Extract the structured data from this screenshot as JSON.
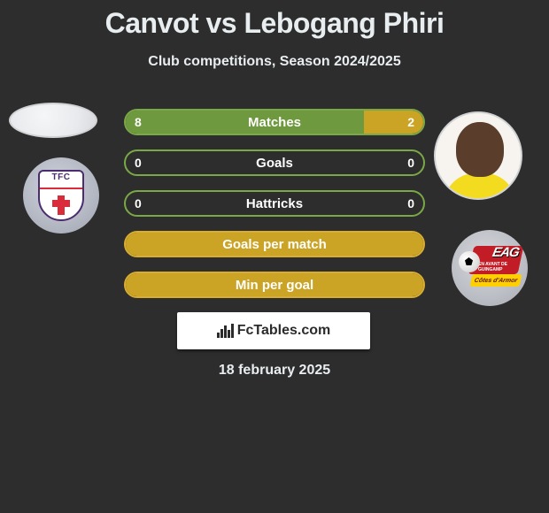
{
  "title": "Canvot vs Lebogang Phiri",
  "subtitle": "Club competitions, Season 2024/2025",
  "date": "18 february 2025",
  "left_color": "#6f993e",
  "right_color": "#cba325",
  "border_color_green": "#7aa846",
  "border_color_gold": "#d9ad31",
  "background_color": "#2d2d2d",
  "text_color": "#e8edf0",
  "rows": [
    {
      "label": "Matches",
      "left": "8",
      "right": "2",
      "left_pct": 80,
      "right_pct": 20,
      "border": "#7aa846"
    },
    {
      "label": "Goals",
      "left": "0",
      "right": "0",
      "left_pct": 0,
      "right_pct": 0,
      "border": "#7aa846"
    },
    {
      "label": "Hattricks",
      "left": "0",
      "right": "0",
      "left_pct": 0,
      "right_pct": 0,
      "border": "#7aa846"
    },
    {
      "label": "Goals per match",
      "left": "",
      "right": "",
      "left_pct": 100,
      "right_pct": 0,
      "border": "#d9ad31",
      "gold_full": true
    },
    {
      "label": "Min per goal",
      "left": "",
      "right": "",
      "left_pct": 100,
      "right_pct": 0,
      "border": "#d9ad31",
      "gold_full": true
    }
  ],
  "fctables_label": "FcTables.com",
  "club_left_text": "TFC",
  "club_right_big": "EAG",
  "club_right_tiny": "EN AVANT DE GUINGAMP",
  "club_right_strip": "Côtes d'Armor"
}
